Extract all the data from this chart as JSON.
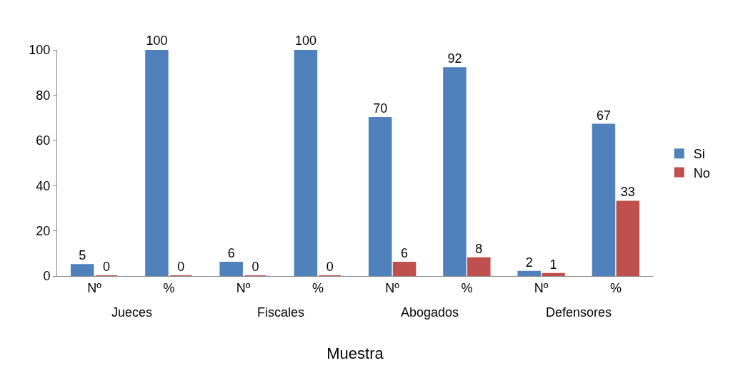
{
  "chart_data": {
    "type": "bar",
    "xlabel": "Muestra",
    "categories": [
      "Nº",
      "%",
      "Nº",
      "%",
      "Nº",
      "%",
      "Nº",
      "%"
    ],
    "series": [
      {
        "name": "Si",
        "color": "#4f81bd",
        "values": [
          5,
          100,
          6,
          100,
          70,
          92,
          2,
          67
        ]
      },
      {
        "name": "No",
        "color": "#c0504d",
        "values": [
          0,
          0,
          0,
          0,
          6,
          8,
          1,
          33
        ]
      }
    ],
    "annotations": [
      "Jueces",
      "Fiscales",
      "Abogados",
      "Defensores"
    ],
    "ylim": [
      0,
      100
    ],
    "yticks": [
      0,
      20,
      40,
      60,
      80,
      100
    ],
    "data_labels": true,
    "legend": "right",
    "grid": false
  }
}
